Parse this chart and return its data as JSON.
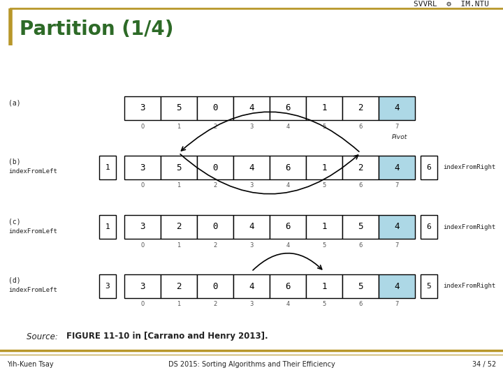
{
  "title": "Partition (1/4)",
  "title_color": "#2d6a27",
  "bg_color": "#ffffff",
  "header_line_color": "#b8972a",
  "header_text": "SVVRL  ⚙  IM.NTU",
  "footer_left": "Yih-Kuen Tsay",
  "footer_center": "DS 2015: Sorting Algorithms and Their Efficiency",
  "footer_right": "34 / 52",
  "pivot_color": "#add8e6",
  "normal_color": "#ffffff",
  "rows": [
    {
      "label_top": "(a)",
      "label_bot": "",
      "show_left_index": false,
      "show_right_index": false,
      "left_index_val": "",
      "right_index_val": "",
      "values": [
        3,
        5,
        0,
        4,
        6,
        1,
        2,
        4
      ],
      "pivot_idx": 7,
      "show_pivot_label": true,
      "pivot_label": "Pivot",
      "arrow_b": false,
      "arrow_d": false
    },
    {
      "label_top": "(b)",
      "label_bot": "indexFromLeft",
      "show_left_index": true,
      "show_right_index": true,
      "left_index_val": "1",
      "right_index_val": "6",
      "values": [
        3,
        5,
        0,
        4,
        6,
        1,
        2,
        4
      ],
      "pivot_idx": 7,
      "show_pivot_label": false,
      "pivot_label": "",
      "arrow_b": true,
      "arrow_d": false
    },
    {
      "label_top": "(c)",
      "label_bot": "indexFromLeft",
      "show_left_index": true,
      "show_right_index": true,
      "left_index_val": "1",
      "right_index_val": "6",
      "values": [
        3,
        2,
        0,
        4,
        6,
        1,
        5,
        4
      ],
      "pivot_idx": 7,
      "show_pivot_label": false,
      "pivot_label": "",
      "arrow_b": false,
      "arrow_d": false
    },
    {
      "label_top": "(d)",
      "label_bot": "indexFromLeft",
      "show_left_index": true,
      "show_right_index": true,
      "left_index_val": "3",
      "right_index_val": "5",
      "values": [
        3,
        2,
        0,
        4,
        6,
        1,
        5,
        4
      ],
      "pivot_idx": 7,
      "show_pivot_label": false,
      "pivot_label": "",
      "arrow_b": false,
      "arrow_d": true
    }
  ]
}
